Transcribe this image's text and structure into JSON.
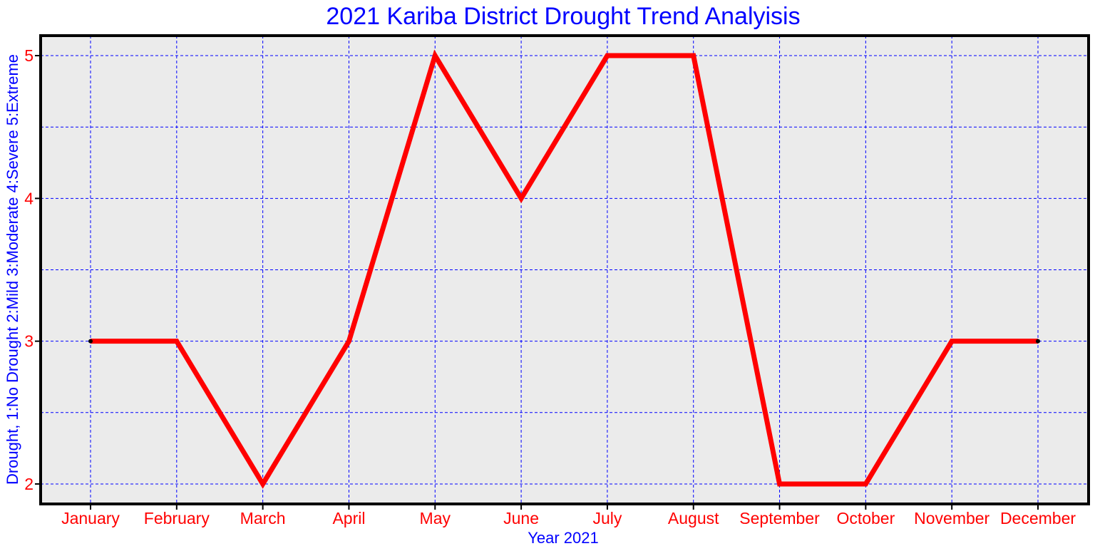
{
  "chart_data": {
    "type": "line",
    "title": "2021 Kariba District Drought Trend Analyisis",
    "xlabel": "Year 2021",
    "ylabel": "Drought, 1:No Drought 2:Mild 3:Moderate 4:Severe 5:Extreme",
    "categories": [
      "January",
      "February",
      "March",
      "April",
      "May",
      "June",
      "July",
      "August",
      "September",
      "October",
      "November",
      "December"
    ],
    "series": [
      {
        "values": [
          3,
          3,
          2,
          3,
          5,
          4,
          5,
          5,
          2,
          2,
          3,
          3
        ],
        "color": "#ff0000"
      }
    ],
    "ylim": [
      1.86,
      5.14
    ],
    "yticks": [
      2,
      3,
      4,
      5
    ],
    "yticklabels": [
      "2",
      "3",
      "4",
      "5"
    ],
    "y_minor_gridlines": [
      2.5,
      3.5,
      4.5
    ],
    "grid": true,
    "colors": {
      "title": "#0000ff",
      "axis_labels": "#0000ff",
      "tick_labels": "#ff0000",
      "grid": "#0000ff",
      "plot_background": "#ebebeb",
      "frame": "#000000",
      "line": "#ff0000"
    }
  }
}
